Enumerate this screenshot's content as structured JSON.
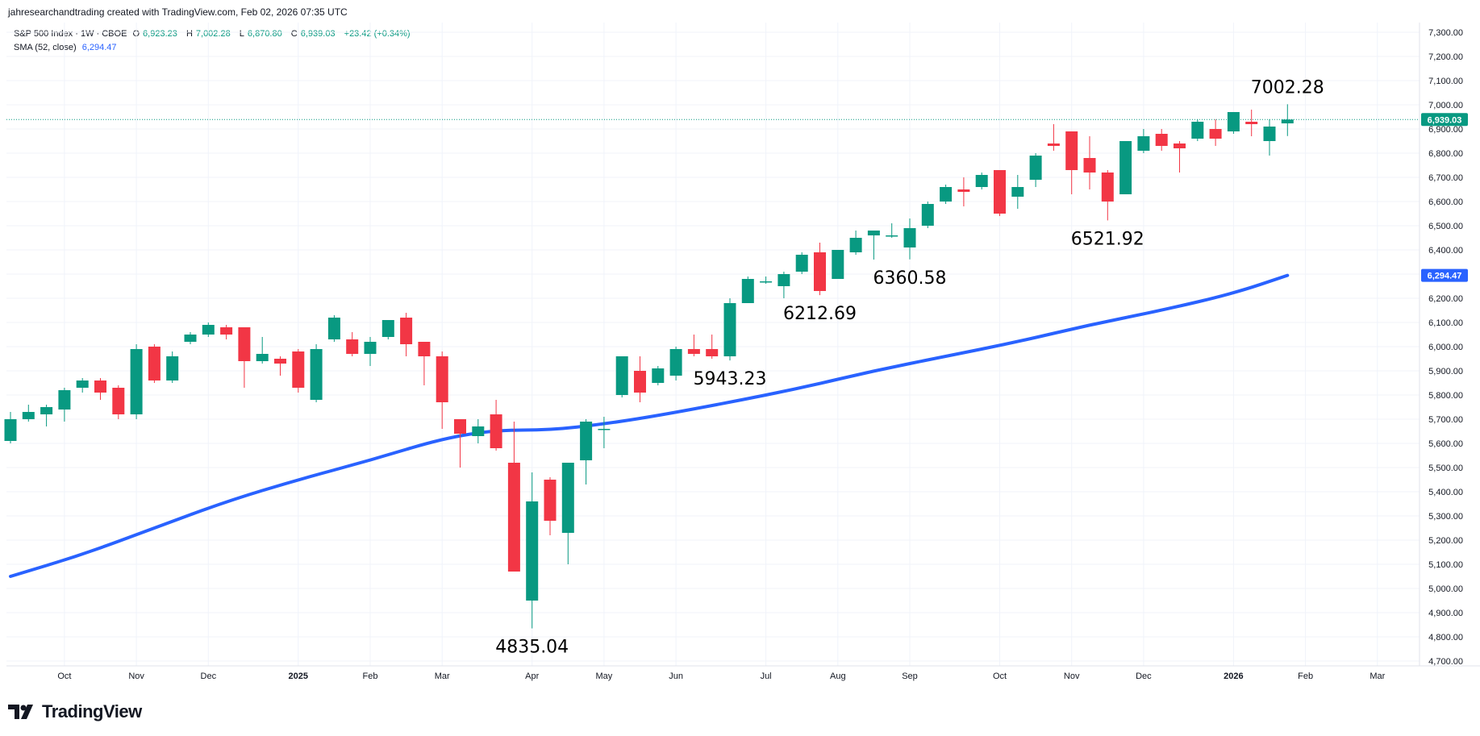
{
  "header": {
    "credit": "jahresearchandtrading created with TradingView.com, Feb 02, 2026 07:35 UTC"
  },
  "legend": {
    "symbol": "S&P 500 Index · 1W · CBOE",
    "open_label": "O",
    "open": "6,923.23",
    "high_label": "H",
    "high": "7,002.28",
    "low_label": "L",
    "low": "6,870.80",
    "close_label": "C",
    "close": "6,939.03",
    "change": "+23.42 (+0.34%)",
    "sma_label": "SMA (52, close)",
    "sma_value": "6,294.47"
  },
  "badges": {
    "last_price": "6,939.03",
    "sma_price": "6,294.47"
  },
  "footer": {
    "brand": "TradingView"
  },
  "colors": {
    "up": "#089981",
    "down": "#f23645",
    "sma": "#2962ff",
    "grid": "#f0f3fa",
    "axis_border": "#e0e3eb"
  },
  "chart_data": {
    "type": "candlestick",
    "symbol": "S&P 500 Index",
    "interval": "1W",
    "ylim": [
      4700,
      7300
    ],
    "y_ticks": [
      "7,300.00",
      "7,200.00",
      "7,100.00",
      "7,000.00",
      "6,900.00",
      "6,800.00",
      "6,700.00",
      "6,600.00",
      "6,500.00",
      "6,400.00",
      "6,300.00",
      "6,200.00",
      "6,100.00",
      "6,000.00",
      "5,900.00",
      "5,800.00",
      "5,700.00",
      "5,600.00",
      "5,500.00",
      "5,400.00",
      "5,300.00",
      "5,200.00",
      "5,100.00",
      "5,000.00",
      "4,900.00",
      "4,800.00",
      "4,700.00"
    ],
    "x_labels": [
      {
        "label": "Oct",
        "week": 3
      },
      {
        "label": "Nov",
        "week": 7
      },
      {
        "label": "Dec",
        "week": 11
      },
      {
        "label": "2025",
        "week": 16,
        "year": true
      },
      {
        "label": "Feb",
        "week": 20
      },
      {
        "label": "Mar",
        "week": 24
      },
      {
        "label": "Apr",
        "week": 29
      },
      {
        "label": "May",
        "week": 33
      },
      {
        "label": "Jun",
        "week": 37
      },
      {
        "label": "Jul",
        "week": 42
      },
      {
        "label": "Aug",
        "week": 46
      },
      {
        "label": "Sep",
        "week": 50
      },
      {
        "label": "Oct",
        "week": 55
      },
      {
        "label": "Nov",
        "week": 59
      },
      {
        "label": "Dec",
        "week": 63
      },
      {
        "label": "2026",
        "week": 68,
        "year": true
      },
      {
        "label": "Feb",
        "week": 72
      },
      {
        "label": "Mar",
        "week": 76
      }
    ],
    "candles": [
      {
        "o": 5610,
        "h": 5730,
        "l": 5600,
        "c": 5700
      },
      {
        "o": 5700,
        "h": 5760,
        "l": 5690,
        "c": 5730
      },
      {
        "o": 5720,
        "h": 5760,
        "l": 5670,
        "c": 5750
      },
      {
        "o": 5740,
        "h": 5830,
        "l": 5690,
        "c": 5820
      },
      {
        "o": 5830,
        "h": 5870,
        "l": 5810,
        "c": 5860
      },
      {
        "o": 5860,
        "h": 5870,
        "l": 5780,
        "c": 5810
      },
      {
        "o": 5830,
        "h": 5840,
        "l": 5700,
        "c": 5720
      },
      {
        "o": 5720,
        "h": 6010,
        "l": 5700,
        "c": 5990
      },
      {
        "o": 6000,
        "h": 6010,
        "l": 5850,
        "c": 5860
      },
      {
        "o": 5860,
        "h": 5980,
        "l": 5850,
        "c": 5960
      },
      {
        "o": 6020,
        "h": 6060,
        "l": 6010,
        "c": 6050
      },
      {
        "o": 6050,
        "h": 6100,
        "l": 6040,
        "c": 6090
      },
      {
        "o": 6080,
        "h": 6090,
        "l": 6030,
        "c": 6050
      },
      {
        "o": 6080,
        "h": 6080,
        "l": 5830,
        "c": 5940
      },
      {
        "o": 5940,
        "h": 6040,
        "l": 5930,
        "c": 5970
      },
      {
        "o": 5950,
        "h": 5960,
        "l": 5880,
        "c": 5930
      },
      {
        "o": 5980,
        "h": 5990,
        "l": 5810,
        "c": 5830
      },
      {
        "o": 5780,
        "h": 6010,
        "l": 5770,
        "c": 5990
      },
      {
        "o": 6030,
        "h": 6130,
        "l": 6020,
        "c": 6120
      },
      {
        "o": 6030,
        "h": 6060,
        "l": 5960,
        "c": 5970
      },
      {
        "o": 5970,
        "h": 6040,
        "l": 5920,
        "c": 6020
      },
      {
        "o": 6040,
        "h": 6110,
        "l": 6030,
        "c": 6110
      },
      {
        "o": 6120,
        "h": 6140,
        "l": 5960,
        "c": 6010
      },
      {
        "o": 6020,
        "h": 6010,
        "l": 5840,
        "c": 5960
      },
      {
        "o": 5960,
        "h": 5980,
        "l": 5660,
        "c": 5770
      },
      {
        "o": 5700,
        "h": 5700,
        "l": 5500,
        "c": 5640
      },
      {
        "o": 5630,
        "h": 5700,
        "l": 5600,
        "c": 5670
      },
      {
        "o": 5720,
        "h": 5780,
        "l": 5570,
        "c": 5580
      },
      {
        "o": 5520,
        "h": 5690,
        "l": 5070,
        "c": 5070
      },
      {
        "o": 4950,
        "h": 5480,
        "l": 4835,
        "c": 5360
      },
      {
        "o": 5450,
        "h": 5460,
        "l": 5220,
        "c": 5280
      },
      {
        "o": 5230,
        "h": 5520,
        "l": 5100,
        "c": 5520
      },
      {
        "o": 5530,
        "h": 5700,
        "l": 5430,
        "c": 5690
      },
      {
        "o": 5660,
        "h": 5710,
        "l": 5580,
        "c": 5660
      },
      {
        "o": 5800,
        "h": 5960,
        "l": 5790,
        "c": 5960
      },
      {
        "o": 5900,
        "h": 5960,
        "l": 5770,
        "c": 5810
      },
      {
        "o": 5850,
        "h": 5920,
        "l": 5840,
        "c": 5910
      },
      {
        "o": 5880,
        "h": 6000,
        "l": 5860,
        "c": 5990
      },
      {
        "o": 5990,
        "h": 6050,
        "l": 5960,
        "c": 5970
      },
      {
        "o": 5990,
        "h": 6050,
        "l": 5950,
        "c": 5960
      },
      {
        "o": 5960,
        "h": 6200,
        "l": 5943,
        "c": 6180
      },
      {
        "o": 6180,
        "h": 6290,
        "l": 6180,
        "c": 6280
      },
      {
        "o": 6270,
        "h": 6290,
        "l": 6260,
        "c": 6270
      },
      {
        "o": 6250,
        "h": 6310,
        "l": 6200,
        "c": 6300
      },
      {
        "o": 6310,
        "h": 6390,
        "l": 6300,
        "c": 6380
      },
      {
        "o": 6390,
        "h": 6430,
        "l": 6213,
        "c": 6230
      },
      {
        "o": 6280,
        "h": 6400,
        "l": 6280,
        "c": 6400
      },
      {
        "o": 6390,
        "h": 6480,
        "l": 6380,
        "c": 6450
      },
      {
        "o": 6460,
        "h": 6480,
        "l": 6360,
        "c": 6480
      },
      {
        "o": 6460,
        "h": 6510,
        "l": 6450,
        "c": 6460
      },
      {
        "o": 6410,
        "h": 6530,
        "l": 6361,
        "c": 6490
      },
      {
        "o": 6500,
        "h": 6600,
        "l": 6490,
        "c": 6590
      },
      {
        "o": 6600,
        "h": 6670,
        "l": 6590,
        "c": 6660
      },
      {
        "o": 6650,
        "h": 6700,
        "l": 6580,
        "c": 6640
      },
      {
        "o": 6660,
        "h": 6720,
        "l": 6650,
        "c": 6710
      },
      {
        "o": 6730,
        "h": 6730,
        "l": 6540,
        "c": 6550
      },
      {
        "o": 6620,
        "h": 6710,
        "l": 6570,
        "c": 6660
      },
      {
        "o": 6690,
        "h": 6800,
        "l": 6660,
        "c": 6790
      },
      {
        "o": 6840,
        "h": 6920,
        "l": 6810,
        "c": 6830
      },
      {
        "o": 6890,
        "h": 6890,
        "l": 6630,
        "c": 6730
      },
      {
        "o": 6780,
        "h": 6870,
        "l": 6650,
        "c": 6720
      },
      {
        "o": 6720,
        "h": 6730,
        "l": 6522,
        "c": 6600
      },
      {
        "o": 6630,
        "h": 6850,
        "l": 6630,
        "c": 6850
      },
      {
        "o": 6810,
        "h": 6900,
        "l": 6800,
        "c": 6870
      },
      {
        "o": 6880,
        "h": 6900,
        "l": 6810,
        "c": 6830
      },
      {
        "o": 6840,
        "h": 6850,
        "l": 6720,
        "c": 6820
      },
      {
        "o": 6860,
        "h": 6940,
        "l": 6850,
        "c": 6930
      },
      {
        "o": 6900,
        "h": 6940,
        "l": 6830,
        "c": 6860
      },
      {
        "o": 6890,
        "h": 6970,
        "l": 6880,
        "c": 6970
      },
      {
        "o": 6930,
        "h": 6980,
        "l": 6870,
        "c": 6920
      },
      {
        "o": 6850,
        "h": 6940,
        "l": 6790,
        "c": 6910
      },
      {
        "o": 6923.23,
        "h": 7002.28,
        "l": 6870.8,
        "c": 6939.03
      }
    ],
    "sma": [
      {
        "week": 0,
        "v": 5050
      },
      {
        "week": 4,
        "v": 5140
      },
      {
        "week": 8,
        "v": 5250
      },
      {
        "week": 12,
        "v": 5360
      },
      {
        "week": 16,
        "v": 5450
      },
      {
        "week": 20,
        "v": 5530
      },
      {
        "week": 24,
        "v": 5620
      },
      {
        "week": 27,
        "v": 5655
      },
      {
        "week": 30,
        "v": 5655
      },
      {
        "week": 33,
        "v": 5680
      },
      {
        "week": 36,
        "v": 5715
      },
      {
        "week": 40,
        "v": 5770
      },
      {
        "week": 44,
        "v": 5830
      },
      {
        "week": 48,
        "v": 5900
      },
      {
        "week": 52,
        "v": 5960
      },
      {
        "week": 56,
        "v": 6020
      },
      {
        "week": 60,
        "v": 6090
      },
      {
        "week": 64,
        "v": 6150
      },
      {
        "week": 68,
        "v": 6220
      },
      {
        "week": 71,
        "v": 6294.47
      }
    ],
    "last_price": 6939.03,
    "sma_last": 6294.47,
    "annotations": [
      {
        "text": "4835.04",
        "week": 29,
        "value": 4835.04,
        "pos": "below"
      },
      {
        "text": "5943.23",
        "week": 40,
        "value": 5943.23,
        "pos": "below"
      },
      {
        "text": "6212.69",
        "week": 45,
        "value": 6212.69,
        "pos": "below"
      },
      {
        "text": "6360.58",
        "week": 50,
        "value": 6360.58,
        "pos": "below"
      },
      {
        "text": "6521.92",
        "week": 61,
        "value": 6521.92,
        "pos": "below"
      },
      {
        "text": "7002.28",
        "week": 71,
        "value": 7002.28,
        "pos": "above"
      }
    ]
  }
}
